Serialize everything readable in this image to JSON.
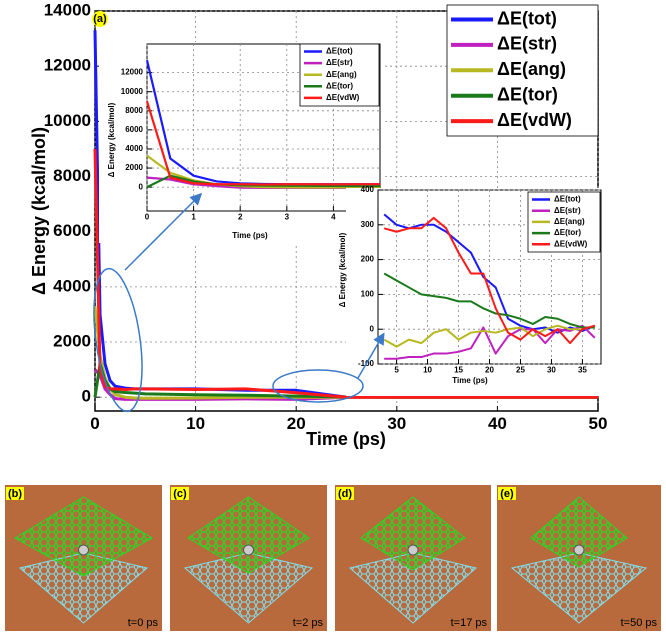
{
  "chart_data": [
    {
      "type": "line",
      "label": "(a)",
      "xlabel": "Time (ps)",
      "ylabel": "Δ Energy (kcal/mol)",
      "x": [
        0,
        0.5,
        1,
        1.5,
        2,
        3,
        4,
        5,
        10,
        15,
        20,
        25,
        30,
        35,
        40,
        45,
        50
      ],
      "series": [
        {
          "name": "ΔE(tot)",
          "color": "#1a1aff",
          "values": [
            13300,
            3000,
            1200,
            600,
            400,
            330,
            300,
            300,
            300,
            250,
            250,
            0,
            0,
            0,
            0,
            0,
            0
          ]
        },
        {
          "name": "ΔE(str)",
          "color": "#c020c0",
          "values": [
            1000,
            800,
            300,
            100,
            -50,
            -80,
            -80,
            -80,
            -80,
            -60,
            -80,
            0,
            0,
            0,
            0,
            0,
            0
          ]
        },
        {
          "name": "ΔE(ang)",
          "color": "#b8b820",
          "values": [
            3300,
            1500,
            700,
            300,
            100,
            0,
            -30,
            -40,
            -30,
            0,
            0,
            0,
            0,
            0,
            0,
            0,
            0
          ]
        },
        {
          "name": "ΔE(tor)",
          "color": "#1a7a1a",
          "values": [
            0,
            1200,
            600,
            300,
            200,
            170,
            150,
            120,
            90,
            70,
            40,
            10,
            0,
            0,
            0,
            0,
            0
          ]
        },
        {
          "name": "ΔE(vdW)",
          "color": "#ff1a1a",
          "values": [
            9000,
            1000,
            400,
            300,
            300,
            280,
            300,
            300,
            280,
            300,
            160,
            0,
            0,
            0,
            0,
            0,
            0
          ]
        }
      ],
      "xlim": [
        0,
        50
      ],
      "xticks": [
        0,
        10,
        20,
        30,
        40,
        50
      ],
      "ylim": [
        -500,
        14000
      ],
      "yticks": [
        0,
        2000,
        4000,
        6000,
        8000,
        10000,
        12000,
        14000
      ],
      "grid": true
    },
    {
      "type": "line",
      "xlabel": "Time (ps)",
      "ylabel": "Δ Energy (kcal/mol)",
      "x": [
        0,
        0.5,
        1,
        1.5,
        2,
        2.5,
        3,
        3.5,
        4,
        4.5,
        5
      ],
      "series": [
        {
          "name": "ΔE(tot)",
          "color": "#1a1aff",
          "values": [
            13300,
            3000,
            1200,
            600,
            400,
            330,
            300,
            300,
            300,
            300,
            300
          ]
        },
        {
          "name": "ΔE(str)",
          "color": "#c020c0",
          "values": [
            1000,
            800,
            300,
            100,
            -50,
            -80,
            -80,
            -80,
            -80,
            -80,
            -80
          ]
        },
        {
          "name": "ΔE(ang)",
          "color": "#b8b820",
          "values": [
            3300,
            1500,
            700,
            300,
            100,
            0,
            -30,
            -40,
            -40,
            -30,
            -30
          ]
        },
        {
          "name": "ΔE(tor)",
          "color": "#1a7a1a",
          "values": [
            0,
            1200,
            600,
            300,
            200,
            170,
            150,
            140,
            130,
            120,
            120
          ]
        },
        {
          "name": "ΔE(vdW)",
          "color": "#ff1a1a",
          "values": [
            9000,
            1000,
            400,
            300,
            300,
            280,
            300,
            300,
            290,
            300,
            300
          ]
        }
      ],
      "xlim": [
        0,
        5
      ],
      "xticks": [
        0,
        1,
        2,
        3,
        4
      ],
      "ylim": [
        -2500,
        15000
      ],
      "yticks": [
        0,
        2000,
        4000,
        6000,
        8000,
        10000,
        12000
      ],
      "grid": true
    },
    {
      "type": "line",
      "xlabel": "Time (ps)",
      "ylabel": "Δ Energy (kcal/mol)",
      "x": [
        3,
        5,
        7,
        9,
        11,
        13,
        15,
        17,
        19,
        21,
        23,
        25,
        27,
        29,
        31,
        33,
        35,
        37
      ],
      "series": [
        {
          "name": "ΔE(tot)",
          "color": "#1a1aff",
          "values": [
            330,
            300,
            290,
            300,
            300,
            280,
            250,
            220,
            150,
            120,
            30,
            10,
            0,
            5,
            -10,
            5,
            -5,
            10
          ]
        },
        {
          "name": "ΔE(str)",
          "color": "#c020c0",
          "values": [
            -85,
            -85,
            -80,
            -80,
            -70,
            -70,
            -65,
            -55,
            5,
            -70,
            -20,
            0,
            0,
            -40,
            0,
            -5,
            10,
            -25
          ]
        },
        {
          "name": "ΔE(ang)",
          "color": "#b8b820",
          "values": [
            -30,
            -50,
            -30,
            -40,
            -10,
            0,
            -30,
            -10,
            -5,
            -10,
            0,
            5,
            -20,
            0,
            10,
            0,
            0,
            10
          ]
        },
        {
          "name": "ΔE(tor)",
          "color": "#1a7a1a",
          "values": [
            160,
            140,
            120,
            100,
            95,
            90,
            80,
            80,
            60,
            45,
            40,
            30,
            15,
            35,
            30,
            15,
            5,
            5
          ]
        },
        {
          "name": "ΔE(vdW)",
          "color": "#ff1a1a",
          "values": [
            290,
            280,
            290,
            290,
            320,
            290,
            220,
            160,
            160,
            60,
            -10,
            -30,
            0,
            -20,
            0,
            -40,
            0,
            10
          ]
        }
      ],
      "xlim": [
        2,
        38
      ],
      "xticks": [
        5,
        10,
        15,
        20,
        25,
        30,
        35
      ],
      "ylim": [
        -100,
        400
      ],
      "yticks": [
        -100,
        0,
        100,
        200,
        300,
        400
      ],
      "grid": true
    }
  ],
  "panels": [
    {
      "label": "(b)",
      "caption": "t=0 ps"
    },
    {
      "label": "(c)",
      "caption": "t=2 ps"
    },
    {
      "label": "(d)",
      "caption": "t=17 ps"
    },
    {
      "label": "(e)",
      "caption": "t=50 ps"
    }
  ]
}
